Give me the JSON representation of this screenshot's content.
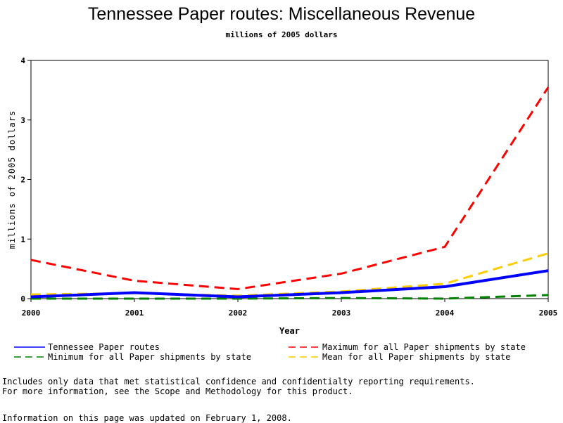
{
  "chart_data": {
    "type": "line",
    "title": "Tennessee Paper routes: Miscellaneous Revenue",
    "subtitle": "millions of 2005 dollars",
    "xlabel": "Year",
    "ylabel": "millions of 2005 dollars",
    "x": [
      "2000",
      "2001",
      "2002",
      "2003",
      "2004",
      "2005"
    ],
    "xlim": [
      2000,
      2005
    ],
    "ylim": [
      0,
      4
    ],
    "yticks": [
      "0",
      "1",
      "2",
      "3",
      "4"
    ],
    "grid": false,
    "legend_position": "bottom",
    "series": [
      {
        "name": "Tennessee Paper routes",
        "values": [
          0.03,
          0.1,
          0.03,
          0.1,
          0.2,
          0.47
        ],
        "color": "#0000ff",
        "style": "solid"
      },
      {
        "name": "Maximum for all Paper shipments by state",
        "values": [
          0.65,
          0.3,
          0.16,
          0.42,
          0.87,
          3.55
        ],
        "color": "#ff0000",
        "style": "dashed"
      },
      {
        "name": "Minimum for all Paper shipments by state",
        "values": [
          0.0,
          0.0,
          0.0,
          0.01,
          0.0,
          0.06
        ],
        "color": "#008000",
        "style": "dashed"
      },
      {
        "name": "Mean for all Paper shipments by state",
        "values": [
          0.07,
          0.09,
          0.05,
          0.12,
          0.25,
          0.76
        ],
        "color": "#ffcc00",
        "style": "dashed"
      }
    ]
  },
  "notes": {
    "line1": "Includes only data that met statistical confidence and confidentialty reporting requirements.",
    "line2": "For more information, see the Scope and Methodology for this product.",
    "updated": "Information on this page was updated on February 1, 2008."
  }
}
